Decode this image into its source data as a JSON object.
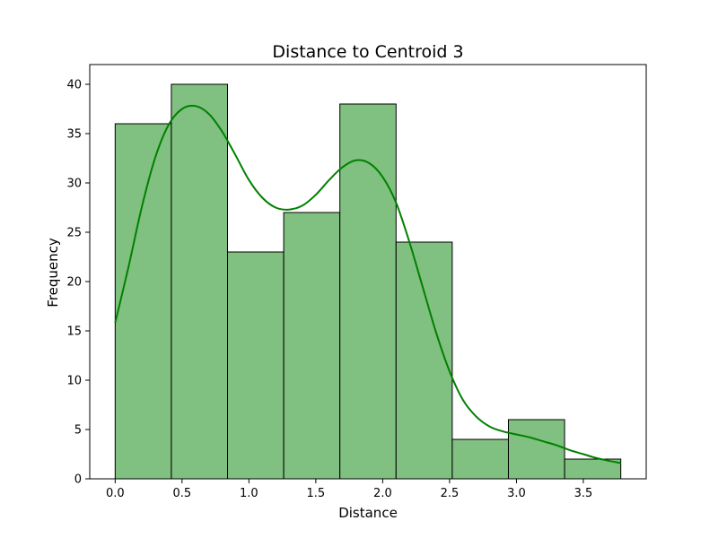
{
  "chart_data": {
    "type": "bar",
    "title": "Distance to Centroid 3",
    "xlabel": "Distance",
    "ylabel": "Frequency",
    "xlim": [
      -0.19,
      3.97
    ],
    "ylim": [
      0,
      42
    ],
    "xticks": [
      "0.0",
      "0.5",
      "1.0",
      "1.5",
      "2.0",
      "2.5",
      "3.0",
      "3.5"
    ],
    "xtick_values": [
      0.0,
      0.5,
      1.0,
      1.5,
      2.0,
      2.5,
      3.0,
      3.5
    ],
    "yticks": [
      "0",
      "5",
      "10",
      "15",
      "20",
      "25",
      "30",
      "35",
      "40"
    ],
    "ytick_values": [
      0,
      5,
      10,
      15,
      20,
      25,
      30,
      35,
      40
    ],
    "bins": [
      {
        "start": 0.0,
        "end": 0.42,
        "count": 36
      },
      {
        "start": 0.42,
        "end": 0.84,
        "count": 40
      },
      {
        "start": 0.84,
        "end": 1.26,
        "count": 23
      },
      {
        "start": 1.26,
        "end": 1.68,
        "count": 27
      },
      {
        "start": 1.68,
        "end": 2.1,
        "count": 38
      },
      {
        "start": 2.1,
        "end": 2.52,
        "count": 24
      },
      {
        "start": 2.52,
        "end": 2.94,
        "count": 4
      },
      {
        "start": 2.94,
        "end": 3.36,
        "count": 6
      },
      {
        "start": 3.36,
        "end": 3.78,
        "count": 2
      }
    ],
    "kde": {
      "x": [
        0.0,
        0.1,
        0.2,
        0.3,
        0.4,
        0.5,
        0.6,
        0.7,
        0.8,
        0.9,
        1.0,
        1.1,
        1.2,
        1.3,
        1.4,
        1.5,
        1.6,
        1.7,
        1.8,
        1.9,
        2.0,
        2.1,
        2.2,
        2.3,
        2.4,
        2.5,
        2.6,
        2.7,
        2.8,
        2.9,
        3.0,
        3.1,
        3.2,
        3.3,
        3.4,
        3.5,
        3.6,
        3.7,
        3.78
      ],
      "y": [
        15.8,
        21.5,
        27.6,
        32.6,
        35.9,
        37.5,
        37.8,
        37.0,
        35.2,
        32.8,
        30.3,
        28.5,
        27.5,
        27.3,
        27.7,
        28.8,
        30.3,
        31.6,
        32.3,
        32.0,
        30.6,
        28.0,
        24.0,
        19.4,
        14.8,
        10.9,
        8.0,
        6.3,
        5.3,
        4.8,
        4.5,
        4.2,
        3.8,
        3.4,
        2.9,
        2.5,
        2.1,
        1.8,
        1.6
      ]
    },
    "bar_fill": "#80c080",
    "bar_edge": "#000000",
    "kde_color": "#008000",
    "grid": false,
    "legend": "none"
  }
}
